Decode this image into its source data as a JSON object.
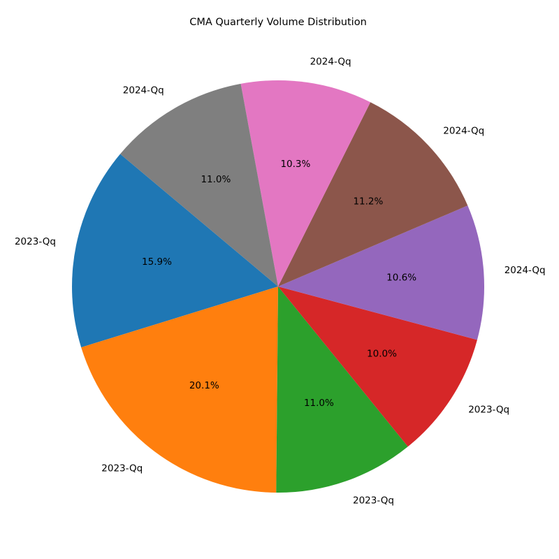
{
  "chart_data": {
    "type": "pie",
    "title": "CMA Quarterly Volume Distribution",
    "start_angle_deg": 140,
    "direction": "counterclockwise",
    "slices": [
      {
        "label": "2023-Qq",
        "pct_text": "15.9%",
        "value": 15.9,
        "color": "#1f77b4"
      },
      {
        "label": "2023-Qq",
        "pct_text": "20.1%",
        "value": 20.1,
        "color": "#ff7f0e"
      },
      {
        "label": "2023-Qq",
        "pct_text": "11.0%",
        "value": 11.0,
        "color": "#2ca02c"
      },
      {
        "label": "2023-Qq",
        "pct_text": "10.0%",
        "value": 10.0,
        "color": "#d62728"
      },
      {
        "label": "2024-Qq",
        "pct_text": "10.6%",
        "value": 10.6,
        "color": "#9467bd"
      },
      {
        "label": "2024-Qq",
        "pct_text": "11.2%",
        "value": 11.2,
        "color": "#8c564b"
      },
      {
        "label": "2024-Qq",
        "pct_text": "10.3%",
        "value": 10.3,
        "color": "#e377c2"
      },
      {
        "label": "2024-Qq",
        "pct_text": "11.0%",
        "value": 11.0,
        "color": "#7f7f7f"
      }
    ]
  }
}
